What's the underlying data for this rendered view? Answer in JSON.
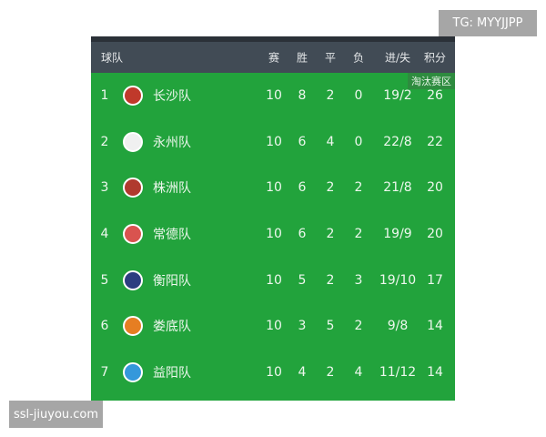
{
  "watermarks": {
    "top": "TG: MYYJJPP",
    "bottom": "ssl-jiuyou.com"
  },
  "headers": {
    "team": "球队",
    "played": "赛",
    "win": "胜",
    "draw": "平",
    "loss": "负",
    "goals": "进/失",
    "points": "积分"
  },
  "zone_badge": "淘汰赛区",
  "rows": [
    {
      "rank": "1",
      "team": "长沙队",
      "played": "10",
      "win": "8",
      "draw": "2",
      "loss": "0",
      "goals": "19/2",
      "points": "26",
      "logo_color": "#c0392b"
    },
    {
      "rank": "2",
      "team": "永州队",
      "played": "10",
      "win": "6",
      "draw": "4",
      "loss": "0",
      "goals": "22/8",
      "points": "22",
      "logo_color": "#f0f0f0"
    },
    {
      "rank": "3",
      "team": "株洲队",
      "played": "10",
      "win": "6",
      "draw": "2",
      "loss": "2",
      "goals": "21/8",
      "points": "20",
      "logo_color": "#b03a2e"
    },
    {
      "rank": "4",
      "team": "常德队",
      "played": "10",
      "win": "6",
      "draw": "2",
      "loss": "2",
      "goals": "19/9",
      "points": "20",
      "logo_color": "#d9534f"
    },
    {
      "rank": "5",
      "team": "衡阳队",
      "played": "10",
      "win": "5",
      "draw": "2",
      "loss": "3",
      "goals": "19/10",
      "points": "17",
      "logo_color": "#2c3e80"
    },
    {
      "rank": "6",
      "team": "娄底队",
      "played": "10",
      "win": "3",
      "draw": "5",
      "loss": "2",
      "goals": "9/8",
      "points": "14",
      "logo_color": "#e67e22"
    },
    {
      "rank": "7",
      "team": "益阳队",
      "played": "10",
      "win": "4",
      "draw": "2",
      "loss": "4",
      "goals": "11/12",
      "points": "14",
      "logo_color": "#3498db"
    }
  ]
}
